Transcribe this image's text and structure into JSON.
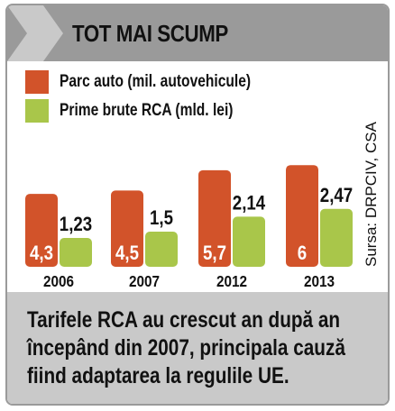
{
  "header": {
    "title": "TOT MAI SCUMP"
  },
  "footer": {
    "text": "Tarifele RCA au crescut an după an începând din 2007, principala cauză fiind adaptarea la regulile UE."
  },
  "source": "Sursa: DRPCIV, CSA",
  "colors": {
    "fleet": "#d2532a",
    "premiums": "#a9c64a",
    "header_bg": "#9a9a9a",
    "footer_bg": "#c9c9c9"
  },
  "chart_data": {
    "type": "bar",
    "categories": [
      "2006",
      "2007",
      "2012",
      "2013"
    ],
    "series": [
      {
        "name": "Parc auto (mil. autovehicule)",
        "values": [
          4.3,
          4.5,
          5.7,
          6
        ],
        "labels": [
          "4,3",
          "4,5",
          "5,7",
          "6"
        ]
      },
      {
        "name": "Prime brute RCA (mld. lei)",
        "values": [
          1.23,
          1.5,
          2.14,
          2.47
        ],
        "labels": [
          "1,23",
          "1,5",
          "2,14",
          "2,47"
        ]
      }
    ]
  }
}
